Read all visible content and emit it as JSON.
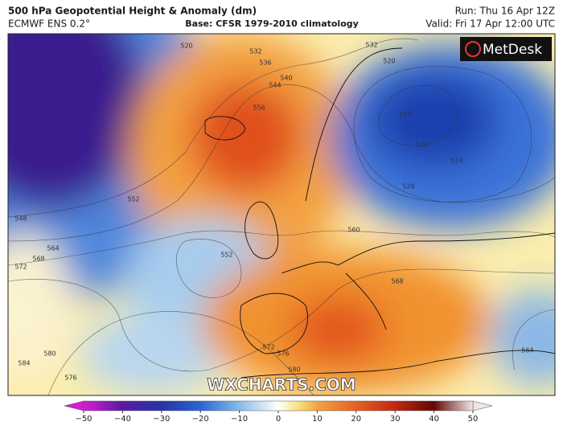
{
  "header": {
    "title": "500 hPa Geopotential Height & Anomaly (dm)",
    "model": "ECMWF ENS 0.2°",
    "base": "Base: CFSR 1979-2010 climatology",
    "run": "Run: Thu 16 Apr 12Z",
    "valid": "Valid: Fri 17 Apr 12:00 UTC"
  },
  "brand": "MetDesk",
  "watermark": "WXCHARTS.COM",
  "contour_labels": [
    520,
    532,
    536,
    540,
    544,
    556,
    552,
    548,
    564,
    568,
    572,
    552,
    580,
    576,
    584,
    572,
    576,
    580,
    568,
    560,
    514,
    520,
    524,
    528,
    520,
    532,
    564
  ],
  "colorbar": {
    "ticks": [
      {
        "value": -50,
        "label": "−50"
      },
      {
        "value": -40,
        "label": "−40"
      },
      {
        "value": -30,
        "label": "−30"
      },
      {
        "value": -20,
        "label": "−20"
      },
      {
        "value": -10,
        "label": "−10"
      },
      0,
      10,
      20,
      30,
      40,
      50
    ]
  }
}
